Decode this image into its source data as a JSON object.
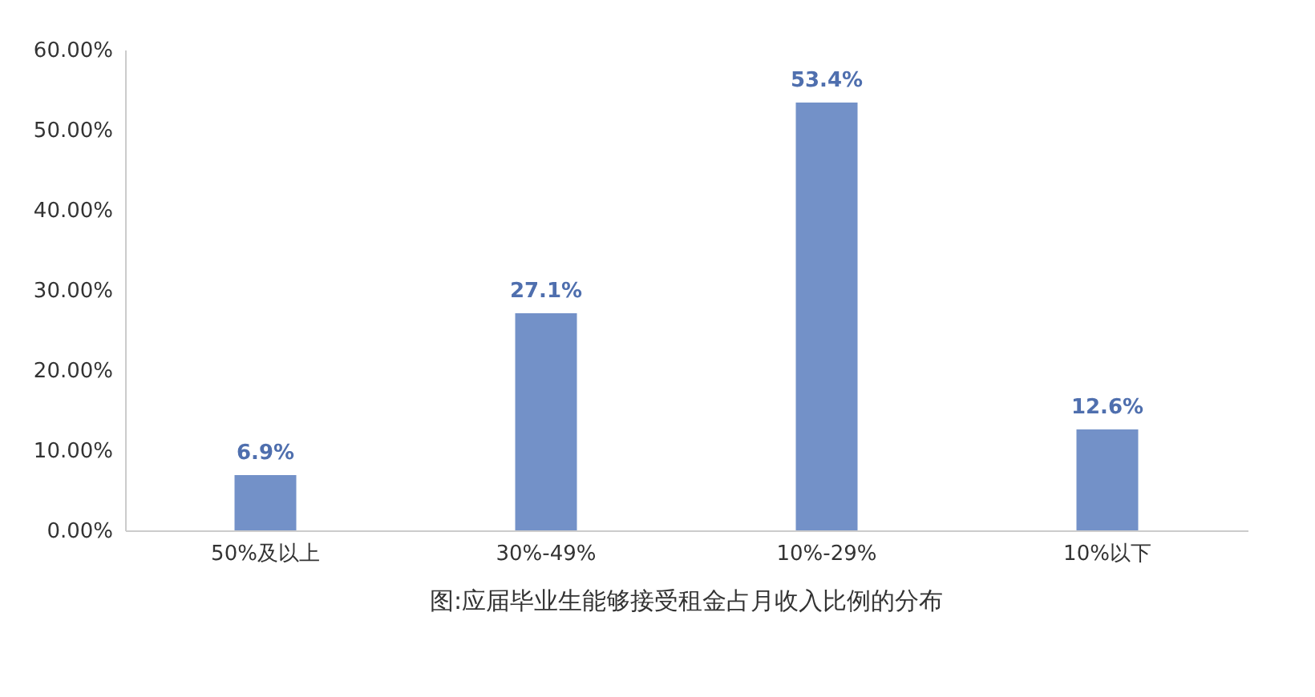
{
  "chart_data": {
    "type": "bar",
    "title": "图:应届毕业生能够接受租金占月收入比例的分布",
    "categories": [
      "50%及以上",
      "30%-49%",
      "10%-29%",
      "10%以下"
    ],
    "values": [
      6.9,
      27.1,
      53.4,
      12.6
    ],
    "value_labels": [
      "6.9%",
      "27.1%",
      "53.4%",
      "12.6%"
    ],
    "color": "#7391c8",
    "ylim": [
      0,
      60
    ],
    "yticks": [
      {
        "value": 0,
        "label": "0.00%"
      },
      {
        "value": 10,
        "label": "10.00%"
      },
      {
        "value": 20,
        "label": "20.00%"
      },
      {
        "value": 30,
        "label": "30.00%"
      },
      {
        "value": 40,
        "label": "40.00%"
      },
      {
        "value": 50,
        "label": "50.00%"
      },
      {
        "value": 60,
        "label": "60.00%"
      }
    ],
    "grid": false
  }
}
